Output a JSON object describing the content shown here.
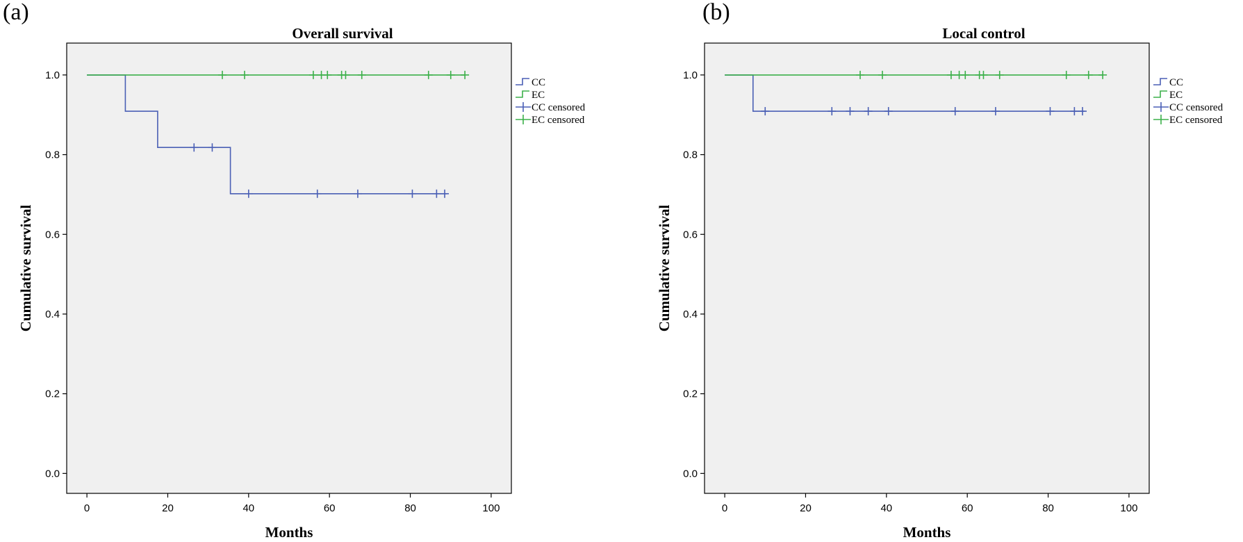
{
  "panels": [
    {
      "label": "(a)",
      "chart_data": {
        "type": "line",
        "title": "Overall survival",
        "xlabel": "Months",
        "ylabel": "Cumulative survival",
        "xlim": [
          -5,
          105
        ],
        "ylim": [
          -0.05,
          1.08
        ],
        "xticks": [
          "0",
          "20",
          "40",
          "60",
          "80",
          "100"
        ],
        "yticks": [
          "0.0",
          "0.2",
          "0.4",
          "0.6",
          "0.8",
          "1.0"
        ],
        "grid": false,
        "legend_position": "right",
        "series": [
          {
            "name": "CC",
            "color": "#4a5fb5",
            "step": [
              [
                0,
                1.0
              ],
              [
                9.5,
                1.0
              ],
              [
                9.5,
                0.909
              ],
              [
                17.5,
                0.909
              ],
              [
                17.5,
                0.818
              ],
              [
                35.5,
                0.818
              ],
              [
                35.5,
                0.702
              ],
              [
                89,
                0.702
              ]
            ],
            "censored": [
              [
                26.5,
                0.818
              ],
              [
                31,
                0.818
              ],
              [
                40,
                0.702
              ],
              [
                57,
                0.702
              ],
              [
                67,
                0.702
              ],
              [
                80.5,
                0.702
              ],
              [
                86.5,
                0.702
              ],
              [
                88.5,
                0.702
              ]
            ]
          },
          {
            "name": "EC",
            "color": "#3cb04a",
            "step": [
              [
                0,
                1.0
              ],
              [
                93.5,
                1.0
              ]
            ],
            "censored": [
              [
                33.5,
                1.0
              ],
              [
                39,
                1.0
              ],
              [
                56,
                1.0
              ],
              [
                58,
                1.0
              ],
              [
                59.5,
                1.0
              ],
              [
                63,
                1.0
              ],
              [
                64,
                1.0
              ],
              [
                68,
                1.0
              ],
              [
                84.5,
                1.0
              ],
              [
                90,
                1.0
              ],
              [
                93.5,
                1.0
              ]
            ]
          }
        ],
        "legend": [
          "CC",
          "EC",
          "CC censored",
          "EC censored"
        ]
      }
    },
    {
      "label": "(b)",
      "chart_data": {
        "type": "line",
        "title": "Local control",
        "xlabel": "Months",
        "ylabel": "Cumulative survival",
        "xlim": [
          -5,
          105
        ],
        "ylim": [
          -0.05,
          1.08
        ],
        "xticks": [
          "0",
          "20",
          "40",
          "60",
          "80",
          "100"
        ],
        "yticks": [
          "0.0",
          "0.2",
          "0.4",
          "0.6",
          "0.8",
          "1.0"
        ],
        "grid": false,
        "legend_position": "right",
        "series": [
          {
            "name": "CC",
            "color": "#4a5fb5",
            "step": [
              [
                0,
                1.0
              ],
              [
                7,
                1.0
              ],
              [
                7,
                0.909
              ],
              [
                89,
                0.909
              ]
            ],
            "censored": [
              [
                10,
                0.909
              ],
              [
                26.5,
                0.909
              ],
              [
                31,
                0.909
              ],
              [
                35.5,
                0.909
              ],
              [
                40.5,
                0.909
              ],
              [
                57,
                0.909
              ],
              [
                67,
                0.909
              ],
              [
                80.5,
                0.909
              ],
              [
                86.5,
                0.909
              ],
              [
                88.5,
                0.909
              ]
            ]
          },
          {
            "name": "EC",
            "color": "#3cb04a",
            "step": [
              [
                0,
                1.0
              ],
              [
                93.5,
                1.0
              ]
            ],
            "censored": [
              [
                33.5,
                1.0
              ],
              [
                39,
                1.0
              ],
              [
                56,
                1.0
              ],
              [
                58,
                1.0
              ],
              [
                59.5,
                1.0
              ],
              [
                63,
                1.0
              ],
              [
                64,
                1.0
              ],
              [
                68,
                1.0
              ],
              [
                84.5,
                1.0
              ],
              [
                90,
                1.0
              ],
              [
                93.5,
                1.0
              ]
            ]
          }
        ],
        "legend": [
          "CC",
          "EC",
          "CC censored",
          "EC censored"
        ]
      }
    }
  ]
}
